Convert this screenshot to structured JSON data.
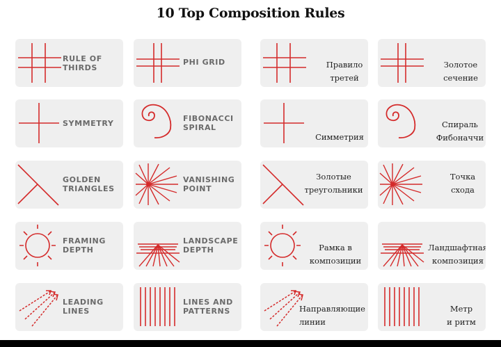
{
  "title": "10 Top Composition Rules",
  "colors": {
    "accent": "#d42a2a",
    "card": "#efefef",
    "en_text": "#6a6a6a",
    "ru_text": "#222222"
  },
  "rules": [
    {
      "icon": "grid-icon",
      "en": [
        "RULE OF",
        "THIRDS"
      ],
      "ru": [
        "Правило",
        "третей"
      ]
    },
    {
      "icon": "phi-grid-icon",
      "en": [
        "PHI GRID",
        ""
      ],
      "ru": [
        "Золотое",
        "сечение"
      ]
    },
    {
      "icon": "symmetry-cross-icon",
      "en": [
        "SYMMETRY",
        ""
      ],
      "ru": [
        "Симметрия",
        ""
      ]
    },
    {
      "icon": "fibonacci-spiral-icon",
      "en": [
        "FIBONACCI",
        "SPIRAL"
      ],
      "ru": [
        "Спираль",
        "Фибоначчи"
      ]
    },
    {
      "icon": "golden-triangles-icon",
      "en": [
        "GOLDEN",
        "TRIANGLES"
      ],
      "ru": [
        "Золотые",
        "треугольники"
      ]
    },
    {
      "icon": "vanishing-point-icon",
      "en": [
        "VANISHING",
        "POINT"
      ],
      "ru": [
        "Точка",
        "схода"
      ]
    },
    {
      "icon": "framing-sun-icon",
      "en": [
        "FRAMING",
        "DEPTH"
      ],
      "ru": [
        "Рамка в",
        "композиции"
      ]
    },
    {
      "icon": "landscape-depth-icon",
      "en": [
        "LANDSCAPE",
        "DEPTH"
      ],
      "ru": [
        "Ландшафтная",
        "композиция"
      ]
    },
    {
      "icon": "leading-lines-icon",
      "en": [
        "LEADING",
        "LINES"
      ],
      "ru": [
        "Направляющие",
        "линии"
      ]
    },
    {
      "icon": "vertical-lines-icon",
      "en": [
        "LINES AND",
        "PATTERNS"
      ],
      "ru": [
        "Метр",
        "и ритм"
      ]
    }
  ]
}
